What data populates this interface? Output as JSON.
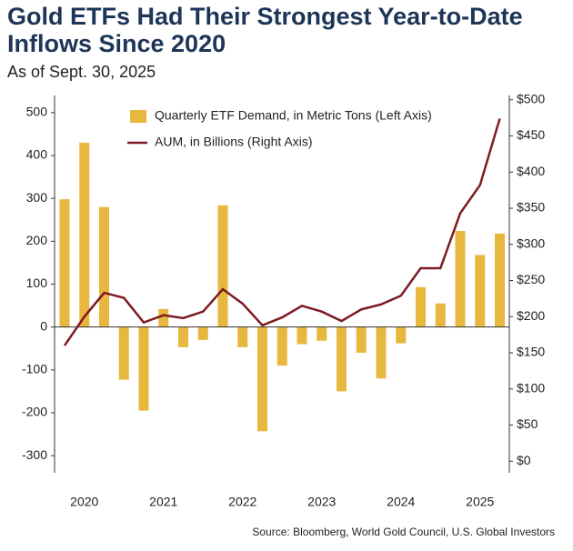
{
  "chart_data": {
    "type": "bar_line",
    "title": "Gold ETFs Had Their Strongest Year-to-Date",
    "title_line2": "Inflows Since 2020",
    "subtitle": "As of Sept. 30, 2025",
    "source": "Source: Bloomberg, World Gold Council, U.S. Global Investors",
    "categories": [
      null,
      "2020",
      null,
      null,
      null,
      "2021",
      null,
      null,
      null,
      "2022",
      null,
      null,
      null,
      "2023",
      null,
      null,
      null,
      "2024",
      null,
      null,
      null,
      "2025",
      null
    ],
    "series": [
      {
        "name": "Quarterly ETF Demand, in Metric Tons (Left Axis)",
        "color": "#e8b73d",
        "type": "bar",
        "values": [
          298,
          430,
          280,
          -123,
          -195,
          42,
          -47,
          -30,
          284,
          -47,
          -243,
          -90,
          -40,
          -32,
          -150,
          -60,
          -120,
          -38,
          93,
          55,
          224,
          168,
          218
        ]
      },
      {
        "name": "AUM, in Billions (Right Axis)",
        "color": "#7d1a22",
        "type": "line",
        "axis": "y2",
        "values": [
          160,
          200,
          233,
          226,
          192,
          202,
          198,
          207,
          238,
          218,
          188,
          199,
          215,
          207,
          194,
          210,
          217,
          229,
          267,
          267,
          343,
          382,
          474
        ]
      }
    ],
    "ylim": [
      -340,
      540
    ],
    "yticks": [
      -300,
      -200,
      -100,
      0,
      100,
      200,
      300,
      400,
      500
    ],
    "y2lim": [
      -16,
      506
    ],
    "y2ticks": [
      {
        "value": 0,
        "label": "$0"
      },
      {
        "value": 50,
        "label": "$50"
      },
      {
        "value": 100,
        "label": "$100"
      },
      {
        "value": 150,
        "label": "$150"
      },
      {
        "value": 200,
        "label": "$200"
      },
      {
        "value": 250,
        "label": "$250"
      },
      {
        "value": 300,
        "label": "$300"
      },
      {
        "value": 350,
        "label": "$350"
      },
      {
        "value": 400,
        "label": "$400"
      },
      {
        "value": 450,
        "label": "$450"
      },
      {
        "value": 500,
        "label": "$500"
      }
    ],
    "grid": false
  }
}
